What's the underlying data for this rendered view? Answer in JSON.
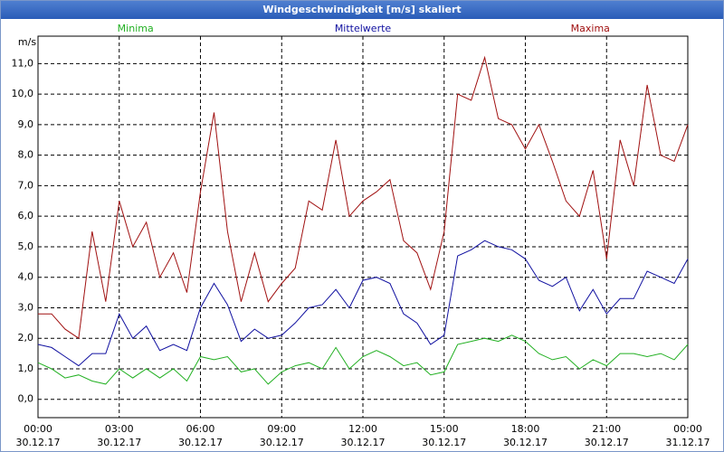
{
  "chart_data": {
    "type": "line",
    "title": "Windgeschwindigkeit [m/s] skaliert",
    "y_unit": "m/s",
    "x": [
      0,
      0.5,
      1,
      1.5,
      2,
      2.5,
      3,
      3.5,
      4,
      4.5,
      5,
      5.5,
      6,
      6.5,
      7,
      7.5,
      8,
      8.5,
      9,
      9.5,
      10,
      10.5,
      11,
      11.5,
      12,
      12.5,
      13,
      13.5,
      14,
      14.5,
      15,
      15.5,
      16,
      16.5,
      17,
      17.5,
      18,
      18.5,
      19,
      19.5,
      20,
      20.5,
      21,
      21.5,
      22,
      22.5,
      23,
      23.5,
      24
    ],
    "series": [
      {
        "name": "Minima",
        "color": "#22b022",
        "values": [
          1.2,
          1.0,
          0.7,
          0.8,
          0.6,
          0.5,
          1.0,
          0.7,
          1.0,
          0.7,
          1.0,
          0.6,
          1.4,
          1.3,
          1.4,
          0.9,
          1.0,
          0.5,
          0.9,
          1.1,
          1.2,
          1.0,
          1.7,
          1.0,
          1.4,
          1.6,
          1.4,
          1.1,
          1.2,
          0.8,
          0.9,
          1.8,
          1.9,
          2.0,
          1.9,
          2.1,
          1.9,
          1.5,
          1.3,
          1.4,
          1.0,
          1.3,
          1.1,
          1.5,
          1.5,
          1.4,
          1.5,
          1.3,
          1.8
        ]
      },
      {
        "name": "Mittelwerte",
        "color": "#1010a0",
        "values": [
          1.8,
          1.7,
          1.4,
          1.1,
          1.5,
          1.5,
          2.8,
          2.0,
          2.4,
          1.6,
          1.8,
          1.6,
          3.0,
          3.8,
          3.1,
          1.9,
          2.3,
          2.0,
          2.1,
          2.5,
          3.0,
          3.1,
          3.6,
          3.0,
          3.9,
          4.0,
          3.8,
          2.8,
          2.5,
          1.8,
          2.1,
          4.7,
          4.9,
          5.2,
          5.0,
          4.9,
          4.6,
          3.9,
          3.7,
          4.0,
          2.9,
          3.6,
          2.8,
          3.3,
          3.3,
          4.2,
          4.0,
          3.8,
          4.6
        ]
      },
      {
        "name": "Maxima",
        "color": "#a01010",
        "values": [
          2.8,
          2.8,
          2.3,
          2.0,
          5.5,
          3.2,
          6.5,
          5.0,
          5.8,
          4.0,
          4.8,
          3.5,
          6.8,
          9.4,
          5.5,
          3.2,
          4.8,
          3.2,
          3.8,
          4.3,
          6.5,
          6.2,
          8.5,
          6.0,
          6.5,
          6.8,
          7.2,
          5.2,
          4.8,
          3.6,
          5.5,
          10.0,
          9.8,
          11.2,
          9.2,
          9.0,
          8.2,
          9.0,
          7.8,
          6.5,
          6.0,
          7.5,
          4.6,
          8.5,
          7.0,
          10.3,
          8.0,
          7.8,
          9.0
        ]
      }
    ],
    "xlim": [
      0,
      24
    ],
    "xticks": [
      {
        "value": 0,
        "label": "00:00",
        "sublabel": "30.12.17"
      },
      {
        "value": 3,
        "label": "03:00",
        "sublabel": "30.12.17"
      },
      {
        "value": 6,
        "label": "06:00",
        "sublabel": "30.12.17"
      },
      {
        "value": 9,
        "label": "09:00",
        "sublabel": "30.12.17"
      },
      {
        "value": 12,
        "label": "12:00",
        "sublabel": "30.12.17"
      },
      {
        "value": 15,
        "label": "15:00",
        "sublabel": "30.12.17"
      },
      {
        "value": 18,
        "label": "18:00",
        "sublabel": "30.12.17"
      },
      {
        "value": 21,
        "label": "21:00",
        "sublabel": "30.12.17"
      },
      {
        "value": 24,
        "label": "00:00",
        "sublabel": "31.12.17"
      }
    ],
    "ylim": [
      -0.6,
      11.9
    ],
    "yticks": [
      {
        "value": 0,
        "label": "0,0"
      },
      {
        "value": 1,
        "label": "1,0"
      },
      {
        "value": 2,
        "label": "2,0"
      },
      {
        "value": 3,
        "label": "3,0"
      },
      {
        "value": 4,
        "label": "4,0"
      },
      {
        "value": 5,
        "label": "5,0"
      },
      {
        "value": 6,
        "label": "6,0"
      },
      {
        "value": 7,
        "label": "7,0"
      },
      {
        "value": 8,
        "label": "8,0"
      },
      {
        "value": 9,
        "label": "9,0"
      },
      {
        "value": 10,
        "label": "10,0"
      },
      {
        "value": 11,
        "label": "11,0"
      }
    ],
    "grid": true
  }
}
